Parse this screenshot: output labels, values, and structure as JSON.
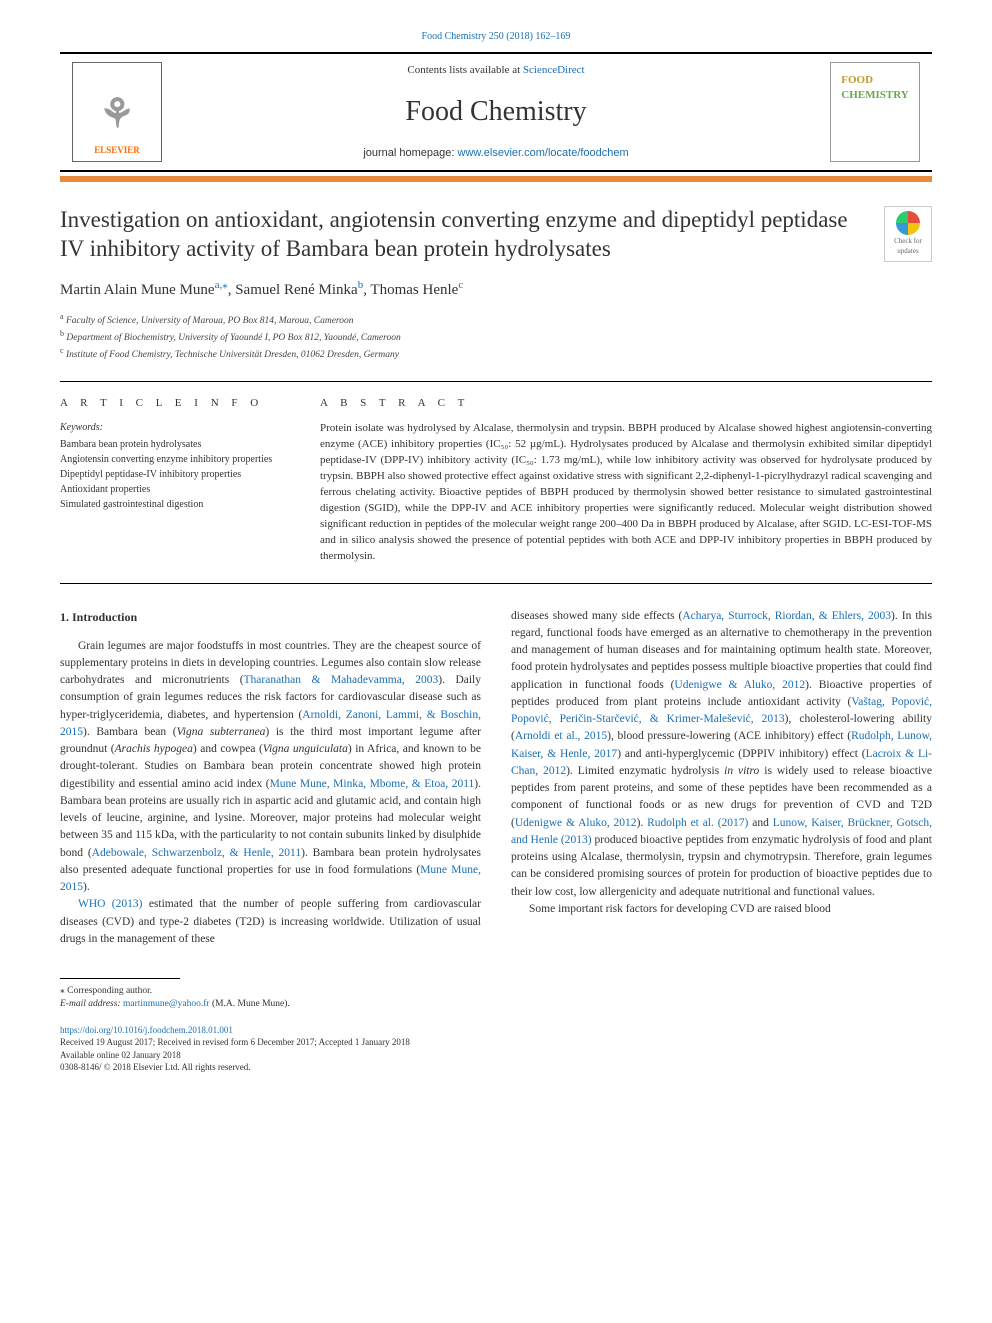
{
  "top_citation": "Food Chemistry 250 (2018) 162–169",
  "header": {
    "contents_prefix": "Contents lists available at ",
    "contents_link": "ScienceDirect",
    "journal_name": "Food Chemistry",
    "homepage_prefix": "journal homepage: ",
    "homepage_link": "www.elsevier.com/locate/foodchem",
    "elsevier_label": "ELSEVIER",
    "logo_food": "FOOD",
    "logo_chem": "CHEMISTRY"
  },
  "crossmark_label": "Check for updates",
  "title": "Investigation on antioxidant, angiotensin converting enzyme and dipeptidyl peptidase IV inhibitory activity of Bambara bean protein hydrolysates",
  "authors": {
    "a1_name": "Martin Alain Mune Mune",
    "a1_sup": "a,",
    "a1_star": "⁎",
    "a2_name": ", Samuel René Minka",
    "a2_sup": "b",
    "a3_name": ", Thomas Henle",
    "a3_sup": "c"
  },
  "affiliations": {
    "a": "Faculty of Science, University of Maroua, PO Box 814, Maroua, Cameroon",
    "b": "Department of Biochemistry, University of Yaoundé I, PO Box 812, Yaoundé, Cameroon",
    "c": "Institute of Food Chemistry, Technische Universität Dresden, 01062 Dresden, Germany"
  },
  "article_info_label": "A R T I C L E  I N F O",
  "abstract_label": "A B S T R A C T",
  "keywords_label": "Keywords:",
  "keywords": [
    "Bambara bean protein hydrolysates",
    "Angiotensin converting enzyme inhibitory properties",
    "Dipeptidyl peptidase-IV inhibitory properties",
    "Antioxidant properties",
    "Simulated gastrointestinal digestion"
  ],
  "abstract": "Protein isolate was hydrolysed by Alcalase, thermolysin and trypsin. BBPH produced by Alcalase showed highest angiotensin-converting enzyme (ACE) inhibitory properties (IC₅₀: 52 µg/mL). Hydrolysates produced by Alcalase and thermolysin exhibited similar dipeptidyl peptidase-IV (DPP-IV) inhibitory activity (IC₅₀: 1.73 mg/mL), while low inhibitory activity was observed for hydrolysate produced by trypsin. BBPH also showed protective effect against oxidative stress with significant 2,2-diphenyl-1-picrylhydrazyl radical scavenging and ferrous chelating activity. Bioactive peptides of BBPH produced by thermolysin showed better resistance to simulated gastrointestinal digestion (SGID), while the DPP-IV and ACE inhibitory properties were significantly reduced. Molecular weight distribution showed significant reduction in peptides of the molecular weight range 200–400 Da in BBPH produced by Alcalase, after SGID. LC-ESI-TOF-MS and in silico analysis showed the presence of potential peptides with both ACE and DPP-IV inhibitory properties in BBPH produced by thermolysin.",
  "intro_heading": "1. Introduction",
  "intro": {
    "p1a": "Grain legumes are major foodstuffs in most countries. They are the cheapest source of supplementary proteins in diets in developing countries. Legumes also contain slow release carbohydrates and micronutrients (",
    "p1_ref1": "Tharanathan & Mahadevamma, 2003",
    "p1b": "). Daily consumption of grain legumes reduces the risk factors for cardiovascular disease such as hyper-triglyceridemia, diabetes, and hypertension (",
    "p1_ref2": "Arnoldi, Zanoni, Lammi, & Boschin, 2015",
    "p1c": "). Bambara bean (",
    "p1_em1": "Vigna subterranea",
    "p1d": ") is the third most important legume after groundnut (",
    "p1_em2": "Arachis hypogea",
    "p1e": ") and cowpea (",
    "p1_em3": "Vigna unguiculata",
    "p1f": ") in Africa, and known to be drought-tolerant. Studies on Bambara bean protein concentrate showed high protein digestibility and essential amino acid index (",
    "p1_ref3": "Mune Mune, Minka, Mbome, & Etoa, 2011",
    "p1g": "). Bambara bean proteins are usually rich in aspartic acid and glutamic acid, and contain high levels of leucine, arginine, and lysine. Moreover, major proteins had molecular weight between 35 and 115 kDa, with the particularity to not contain subunits linked by disulphide bond (",
    "p1_ref4": "Adebowale, Schwarzenbolz, & Henle, 2011",
    "p1h": "). Bambara bean protein hydrolysates also presented adequate functional properties for use in food formulations (",
    "p1_ref5": "Mune Mune, 2015",
    "p1i": ").",
    "p2_ref1": "WHO (2013)",
    "p2a": " estimated that the number of people suffering from cardiovascular diseases (CVD) and type-2 diabetes (T2D) is increasing worldwide. Utilization of usual drugs in the management of these",
    "p3a": "diseases showed many side effects (",
    "p3_ref1": "Acharya, Sturrock, Riordan, & Ehlers, 2003",
    "p3b": "). In this regard, functional foods have emerged as an alternative to chemotherapy in the prevention and management of human diseases and for maintaining optimum health state. Moreover, food protein hydrolysates and peptides possess multiple bioactive properties that could find application in functional foods (",
    "p3_ref2": "Udenigwe & Aluko, 2012",
    "p3c": "). Bioactive properties of peptides produced from plant proteins include antioxidant activity (",
    "p3_ref3": "Vaštag, Popović, Popović, Peričin-Starčević, & Krimer-Malešević, 2013",
    "p3d": "), cholesterol-lowering ability (",
    "p3_ref4": "Arnoldi et al., 2015",
    "p3e": "), blood pressure-lowering (ACE inhibitory) effect (",
    "p3_ref5": "Rudolph, Lunow, Kaiser, & Henle, 2017",
    "p3f": ") and anti-hyperglycemic (DPPIV inhibitory) effect (",
    "p3_ref6": "Lacroix & Li-Chan, 2012",
    "p3g": "). Limited enzymatic hydrolysis ",
    "p3_em1": "in vitro",
    "p3h": " is widely used to release bioactive peptides from parent proteins, and some of these peptides have been recommended as a component of functional foods or as new drugs for prevention of CVD and T2D (",
    "p3_ref7": "Udenigwe & Aluko, 2012",
    "p3i": "). ",
    "p3_ref8": "Rudolph et al. (2017)",
    "p3j": " and ",
    "p3_ref9": "Lunow, Kaiser, Brückner, Gotsch, and Henle (2013)",
    "p3k": " produced bioactive peptides from enzymatic hydrolysis of food and plant proteins using Alcalase, thermolysin, trypsin and chymotrypsin. Therefore, grain legumes can be considered promising sources of protein for production of bioactive peptides due to their low cost, low allergenicity and adequate nutritional and functional values.",
    "p4": "Some important risk factors for developing CVD are raised blood"
  },
  "footnote": {
    "corr": "⁎ Corresponding author.",
    "email_label": "E-mail address: ",
    "email": "martinmune@yahoo.fr",
    "email_suffix": " (M.A. Mune Mune)."
  },
  "doi": {
    "link": "https://doi.org/10.1016/j.foodchem.2018.01.001",
    "received": "Received 19 August 2017; Received in revised form 6 December 2017; Accepted 1 January 2018",
    "available": "Available online 02 January 2018",
    "issn": "0308-8146/ © 2018 Elsevier Ltd. All rights reserved."
  },
  "colors": {
    "link": "#1b6fb5",
    "orange_bar": "#e98a3a",
    "elsevier": "#ff6a00",
    "food": "#c59a2a",
    "chem": "#6aa84f"
  }
}
